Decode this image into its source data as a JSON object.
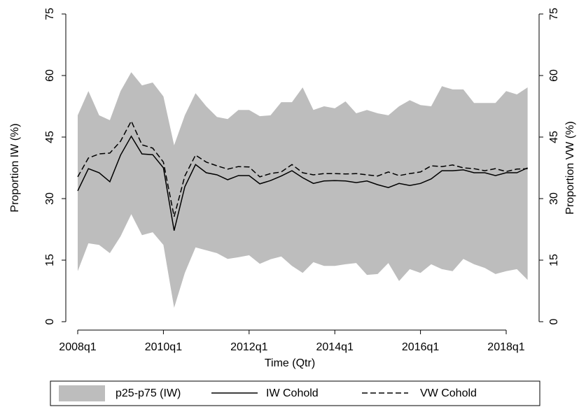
{
  "chart_data": {
    "type": "band-line",
    "x_label": "Time (Qtr)",
    "y_label": "Proportion IW (%)",
    "y2_label": "Proportion VW (%)",
    "categories": [
      "2008q1",
      null,
      null,
      null,
      null,
      null,
      null,
      null,
      "2010q1",
      null,
      null,
      null,
      null,
      null,
      null,
      null,
      "2012q1",
      null,
      null,
      null,
      null,
      null,
      null,
      null,
      "2014q1",
      null,
      null,
      null,
      null,
      null,
      null,
      null,
      "2016q1",
      null,
      null,
      null,
      null,
      null,
      null,
      null,
      "2018q1",
      null,
      null
    ],
    "ylim": [
      0,
      75
    ],
    "yticks": [
      0,
      15,
      30,
      45,
      60,
      75
    ],
    "y2lim": [
      0,
      75
    ],
    "y2ticks": [
      0,
      15,
      30,
      45,
      60,
      75
    ],
    "grid": false,
    "legend": "bottom",
    "series": [
      {
        "name": "p25-p75 (IW)",
        "color": "#bdbdbd",
        "kind": "band",
        "low": [
          12.3,
          19.1,
          18.7,
          16.7,
          20.8,
          26.2,
          21.1,
          21.8,
          18.7,
          3.4,
          11.9,
          18.1,
          17.4,
          16.7,
          15.3,
          15.7,
          16.2,
          14.1,
          15.2,
          15.9,
          13.6,
          11.9,
          14.5,
          13.6,
          13.6,
          14.0,
          14.3,
          11.4,
          11.6,
          14.3,
          9.9,
          12.8,
          11.9,
          14.0,
          12.8,
          12.3,
          15.3,
          14.0,
          13.1,
          11.6,
          12.3,
          12.8,
          10.2
        ],
        "high": [
          50.3,
          56.2,
          50.3,
          49.1,
          56.2,
          60.8,
          57.6,
          58.3,
          54.9,
          43.0,
          50.3,
          55.7,
          52.5,
          49.9,
          49.4,
          51.6,
          51.6,
          50.1,
          50.3,
          53.5,
          53.5,
          57.1,
          51.6,
          52.5,
          52.0,
          53.7,
          50.8,
          51.6,
          50.8,
          50.3,
          52.5,
          54.0,
          52.8,
          52.5,
          57.4,
          56.6,
          56.6,
          53.3,
          53.3,
          53.3,
          56.2,
          55.4,
          57.1
        ]
      },
      {
        "name": "IW Cohold",
        "color": "#000000",
        "kind": "solid",
        "values": [
          31.9,
          37.3,
          36.3,
          34.1,
          40.6,
          45.2,
          40.9,
          40.7,
          37.5,
          22.2,
          32.9,
          38.3,
          36.3,
          35.8,
          34.6,
          35.6,
          35.6,
          33.6,
          34.4,
          35.5,
          36.8,
          35.1,
          33.7,
          34.3,
          34.4,
          34.3,
          33.9,
          34.3,
          33.4,
          32.7,
          33.7,
          33.2,
          33.7,
          34.8,
          36.8,
          36.8,
          37.0,
          36.3,
          36.3,
          35.6,
          36.3,
          36.3,
          37.5
        ]
      },
      {
        "name": "VW Cohold",
        "color": "#000000",
        "kind": "dashed",
        "axis": "y2",
        "values": [
          35.3,
          39.9,
          40.9,
          41.1,
          44.0,
          48.9,
          43.1,
          42.3,
          38.9,
          25.6,
          35.5,
          40.6,
          38.9,
          38.0,
          37.2,
          37.8,
          37.7,
          35.3,
          36.1,
          36.5,
          38.3,
          36.3,
          35.8,
          36.1,
          36.1,
          36.0,
          36.1,
          35.8,
          35.5,
          36.5,
          35.6,
          36.1,
          36.5,
          38.0,
          37.8,
          38.2,
          37.5,
          37.3,
          36.8,
          37.3,
          36.6,
          37.2,
          37.3
        ]
      }
    ]
  }
}
